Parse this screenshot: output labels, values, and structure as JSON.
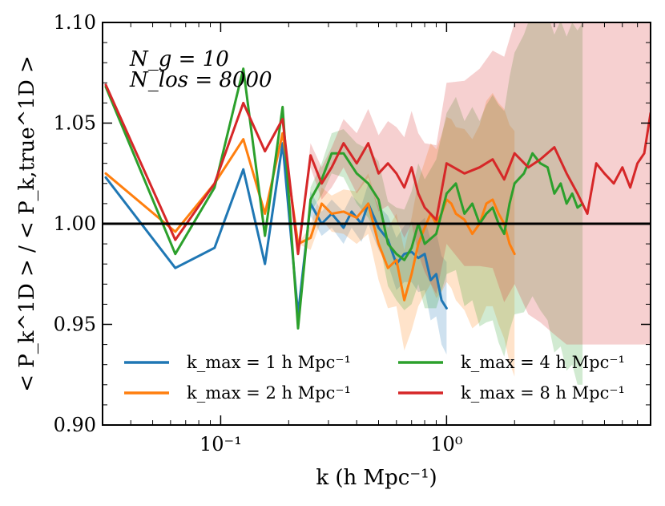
{
  "chart_data": {
    "type": "line",
    "xscale": "log",
    "xlim": [
      0.03,
      8.0
    ],
    "ylim": [
      0.9,
      1.1
    ],
    "xlabel": "k (h Mpc⁻¹)",
    "ylabel": "< P_k^1D > / < P_k,true^1D >",
    "y_ticks": [
      0.9,
      0.95,
      1.0,
      1.05,
      1.1
    ],
    "y_tick_labels": [
      "0.90",
      "0.95",
      "1.00",
      "1.05",
      "1.10"
    ],
    "x_ticks": [
      0.1,
      1.0
    ],
    "x_tick_labels": [
      "10⁻¹",
      "10⁰"
    ],
    "reference_line": 1.0,
    "annotations": [
      "N_g = 10",
      "N_los = 8000"
    ],
    "legend_position": "lower-center",
    "series": [
      {
        "name": "k_max = 1 h Mpc⁻¹",
        "color": "#1f77b4",
        "x": [
          0.031,
          0.063,
          0.094,
          0.126,
          0.157,
          0.188,
          0.22,
          0.25,
          0.28,
          0.31,
          0.35,
          0.38,
          0.42,
          0.45,
          0.5,
          0.55,
          0.6,
          0.65,
          0.7,
          0.75,
          0.8,
          0.85,
          0.9,
          0.95,
          1.0
        ],
        "values": [
          1.023,
          0.978,
          0.988,
          1.027,
          0.98,
          1.04,
          0.955,
          1.01,
          1.0,
          1.005,
          0.998,
          1.006,
          1.0,
          1.01,
          0.998,
          0.992,
          0.98,
          0.985,
          0.986,
          0.983,
          0.985,
          0.972,
          0.975,
          0.962,
          0.958
        ],
        "band_upper": [
          1.023,
          0.978,
          0.988,
          1.027,
          0.98,
          1.04,
          0.955,
          1.016,
          1.006,
          1.012,
          1.006,
          1.014,
          1.009,
          1.02,
          1.009,
          1.004,
          0.993,
          0.999,
          1.001,
          1.0,
          1.003,
          0.992,
          0.996,
          0.984,
          0.981
        ],
        "band_lower": [
          1.023,
          0.978,
          0.988,
          1.027,
          0.98,
          1.04,
          0.955,
          1.004,
          0.994,
          0.998,
          0.99,
          0.998,
          0.991,
          1.0,
          0.987,
          0.98,
          0.967,
          0.971,
          0.971,
          0.966,
          0.967,
          0.952,
          0.954,
          0.94,
          0.935
        ]
      },
      {
        "name": "k_max = 2 h Mpc⁻¹",
        "color": "#ff7f0e",
        "x": [
          0.031,
          0.063,
          0.094,
          0.126,
          0.157,
          0.188,
          0.22,
          0.25,
          0.28,
          0.31,
          0.35,
          0.4,
          0.45,
          0.5,
          0.55,
          0.6,
          0.65,
          0.7,
          0.75,
          0.8,
          0.85,
          0.9,
          0.95,
          1.0,
          1.05,
          1.1,
          1.2,
          1.3,
          1.4,
          1.5,
          1.6,
          1.7,
          1.8,
          1.9,
          2.0
        ],
        "values": [
          1.025,
          0.996,
          1.02,
          1.042,
          1.005,
          1.045,
          0.99,
          0.993,
          1.01,
          1.005,
          1.006,
          1.003,
          1.01,
          0.99,
          0.978,
          0.982,
          0.962,
          0.975,
          0.99,
          0.998,
          1.005,
          1.0,
          1.005,
          1.012,
          1.01,
          1.005,
          1.002,
          0.995,
          1.0,
          1.01,
          1.012,
          1.005,
          1.0,
          0.99,
          0.985
        ],
        "band_upper": [
          1.025,
          0.996,
          1.02,
          1.042,
          1.005,
          1.045,
          0.99,
          0.999,
          1.018,
          1.014,
          1.017,
          1.016,
          1.025,
          1.008,
          0.998,
          1.005,
          0.987,
          1.003,
          1.021,
          1.031,
          1.04,
          1.037,
          1.044,
          1.053,
          1.052,
          1.048,
          1.047,
          1.042,
          1.049,
          1.061,
          1.065,
          1.06,
          1.057,
          1.049,
          1.046
        ],
        "band_lower": [
          1.025,
          0.996,
          1.02,
          1.042,
          1.005,
          1.045,
          0.99,
          0.987,
          1.002,
          0.996,
          0.995,
          0.99,
          0.995,
          0.972,
          0.958,
          0.959,
          0.937,
          0.947,
          0.959,
          0.965,
          0.97,
          0.963,
          0.966,
          0.971,
          0.968,
          0.962,
          0.957,
          0.948,
          0.951,
          0.959,
          0.959,
          0.95,
          0.943,
          0.931,
          0.924
        ]
      },
      {
        "name": "k_max = 4 h Mpc⁻¹",
        "color": "#2ca02c",
        "x": [
          0.031,
          0.063,
          0.094,
          0.126,
          0.157,
          0.188,
          0.22,
          0.25,
          0.28,
          0.31,
          0.35,
          0.4,
          0.45,
          0.5,
          0.55,
          0.6,
          0.65,
          0.7,
          0.75,
          0.8,
          0.9,
          1.0,
          1.1,
          1.2,
          1.3,
          1.4,
          1.5,
          1.6,
          1.7,
          1.8,
          1.9,
          2.0,
          2.2,
          2.4,
          2.6,
          2.8,
          3.0,
          3.2,
          3.4,
          3.6,
          3.8,
          4.0
        ],
        "values": [
          1.068,
          0.985,
          1.018,
          1.077,
          0.994,
          1.058,
          0.948,
          1.012,
          1.022,
          1.035,
          1.035,
          1.025,
          1.02,
          1.012,
          0.99,
          0.985,
          0.982,
          0.988,
          1.0,
          0.99,
          0.995,
          1.015,
          1.02,
          1.005,
          1.01,
          1.0,
          1.005,
          1.008,
          1.0,
          0.995,
          1.01,
          1.02,
          1.025,
          1.035,
          1.03,
          1.028,
          1.015,
          1.02,
          1.01,
          1.015,
          1.008,
          1.01
        ],
        "band_upper": [
          1.068,
          0.985,
          1.018,
          1.077,
          0.994,
          1.058,
          0.948,
          1.018,
          1.03,
          1.045,
          1.047,
          1.04,
          1.037,
          1.031,
          1.011,
          1.008,
          1.007,
          1.016,
          1.03,
          1.022,
          1.032,
          1.055,
          1.063,
          1.051,
          1.058,
          1.051,
          1.059,
          1.064,
          1.059,
          1.056,
          1.073,
          1.085,
          1.094,
          1.106,
          1.103,
          1.104,
          1.094,
          1.101,
          1.093,
          1.1,
          1.096,
          1.1
        ],
        "band_lower": [
          1.068,
          0.985,
          1.018,
          1.077,
          0.994,
          1.058,
          0.948,
          1.006,
          1.014,
          1.025,
          1.023,
          1.01,
          1.003,
          0.993,
          0.969,
          0.962,
          0.957,
          0.96,
          0.97,
          0.958,
          0.958,
          0.975,
          0.977,
          0.959,
          0.962,
          0.949,
          0.951,
          0.952,
          0.941,
          0.934,
          0.947,
          0.955,
          0.956,
          0.964,
          0.957,
          0.952,
          0.936,
          0.939,
          0.927,
          0.93,
          0.92,
          0.92
        ]
      },
      {
        "name": "k_max = 8 h Mpc⁻¹",
        "color": "#d62728",
        "x": [
          0.031,
          0.063,
          0.094,
          0.126,
          0.157,
          0.188,
          0.22,
          0.25,
          0.28,
          0.31,
          0.35,
          0.4,
          0.45,
          0.5,
          0.55,
          0.6,
          0.65,
          0.7,
          0.75,
          0.8,
          0.9,
          1.0,
          1.2,
          1.4,
          1.6,
          1.8,
          2.0,
          2.3,
          2.6,
          3.0,
          3.4,
          3.8,
          4.2,
          4.6,
          5.0,
          5.5,
          6.0,
          6.5,
          7.0,
          7.5,
          8.0
        ],
        "values": [
          1.069,
          0.992,
          1.02,
          1.06,
          1.036,
          1.052,
          0.985,
          1.034,
          1.02,
          1.028,
          1.04,
          1.03,
          1.04,
          1.025,
          1.03,
          1.025,
          1.018,
          1.028,
          1.015,
          1.008,
          1.002,
          1.03,
          1.025,
          1.028,
          1.032,
          1.022,
          1.035,
          1.028,
          1.032,
          1.038,
          1.025,
          1.015,
          1.005,
          1.03,
          1.025,
          1.02,
          1.028,
          1.018,
          1.03,
          1.035,
          1.055
        ],
        "band_upper": [
          1.069,
          0.992,
          1.02,
          1.06,
          1.036,
          1.052,
          0.985,
          1.04,
          1.028,
          1.038,
          1.052,
          1.045,
          1.057,
          1.044,
          1.051,
          1.048,
          1.043,
          1.056,
          1.045,
          1.04,
          1.039,
          1.07,
          1.071,
          1.077,
          1.086,
          1.083,
          1.1,
          1.1,
          1.1,
          1.1,
          1.1,
          1.1,
          1.1,
          1.1,
          1.1,
          1.1,
          1.1,
          1.1,
          1.1,
          1.1,
          1.1
        ],
        "band_lower": [
          1.069,
          0.992,
          1.02,
          1.06,
          1.036,
          1.052,
          0.985,
          1.028,
          1.012,
          1.018,
          1.028,
          1.015,
          1.023,
          1.006,
          1.009,
          1.002,
          0.993,
          1.0,
          0.985,
          0.976,
          0.965,
          0.99,
          0.979,
          0.979,
          0.978,
          0.961,
          0.97,
          0.955,
          0.951,
          0.945,
          0.94,
          0.94,
          0.94,
          0.94,
          0.94,
          0.94,
          0.94,
          0.94,
          0.94,
          0.94,
          0.94
        ]
      }
    ]
  }
}
